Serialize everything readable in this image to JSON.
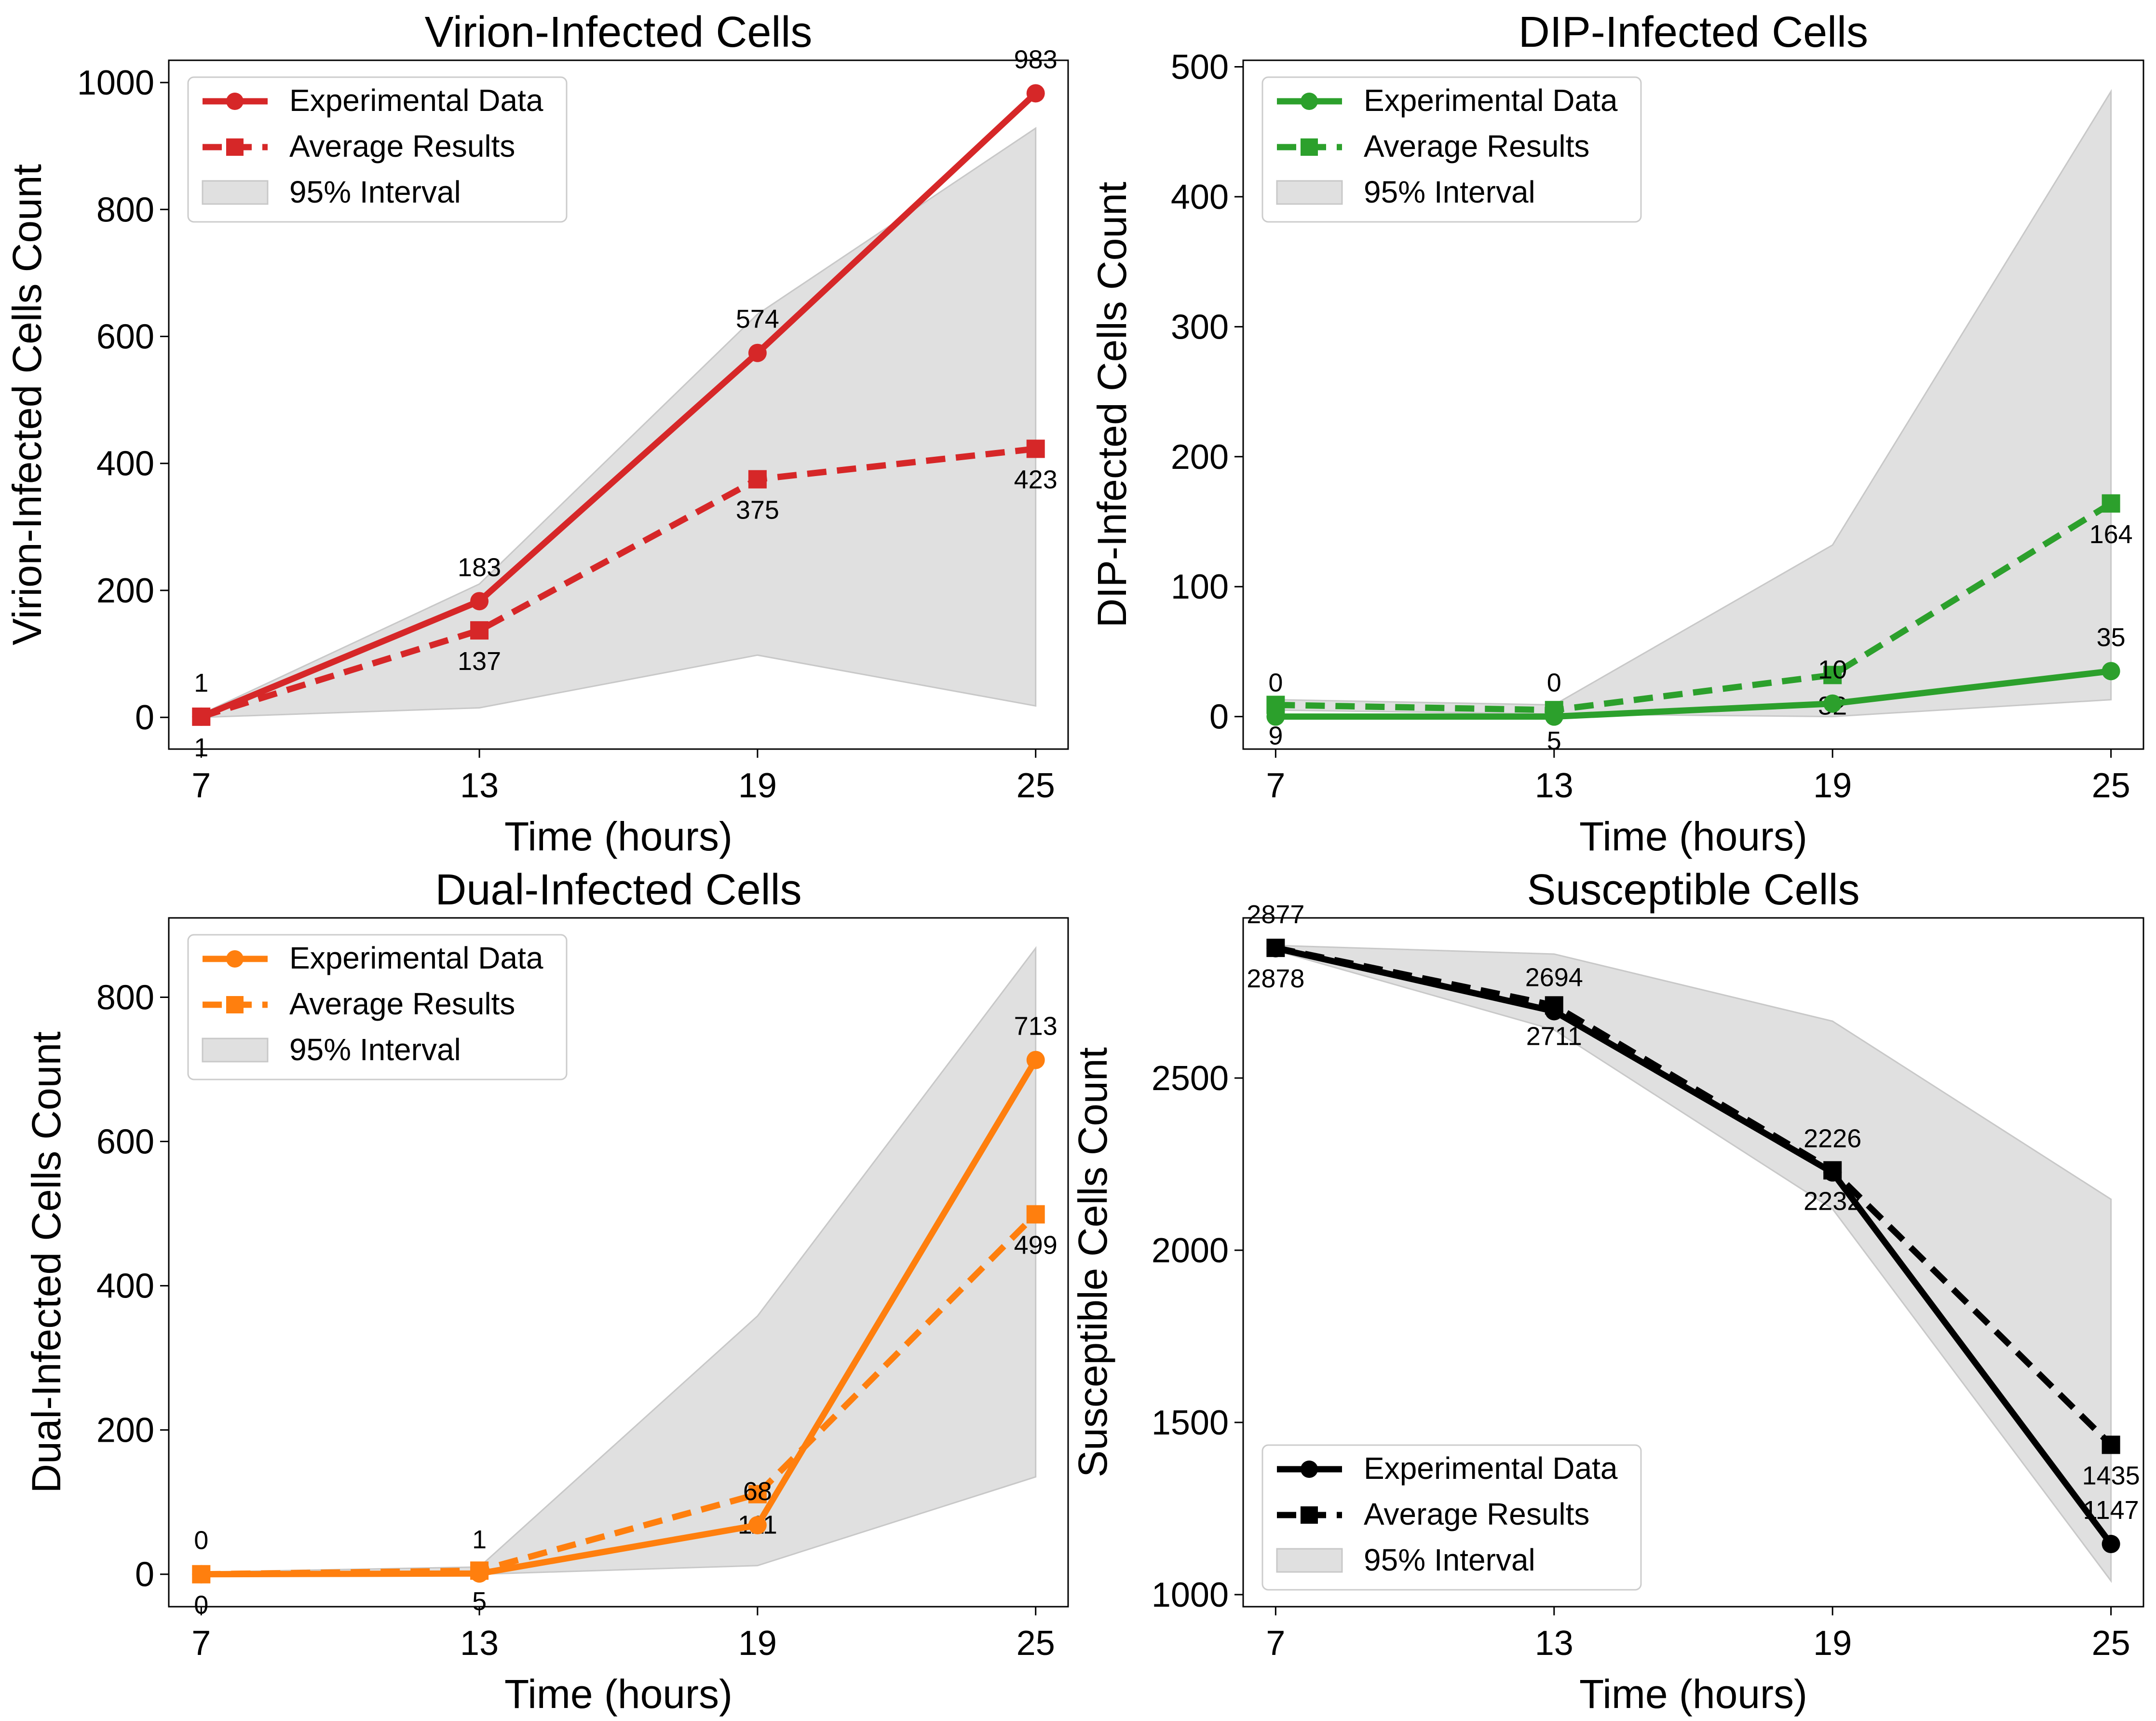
{
  "chart_data": [
    {
      "type": "line",
      "title": "Virion-Infected Cells",
      "xlabel": "Time (hours)",
      "ylabel": "Virion-Infected Cells Count",
      "x": [
        7,
        13,
        19,
        25
      ],
      "xlim": [
        6.3,
        25.7
      ],
      "ylim": [
        -50,
        1035
      ],
      "yticks": [
        0,
        200,
        400,
        600,
        800,
        1000
      ],
      "color": "#d62728",
      "legend_position": "upper-left",
      "series": [
        {
          "name": "Experimental Data",
          "style": "solid",
          "marker": "circle",
          "values": [
            1,
            183,
            574,
            983
          ],
          "labels": [
            "1",
            "183",
            "574",
            "983"
          ],
          "label_side": "above"
        },
        {
          "name": "Average Results",
          "style": "dashed",
          "marker": "square",
          "values": [
            1,
            137,
            375,
            423
          ],
          "labels": [
            "1",
            "137",
            "375",
            "423"
          ],
          "label_side": "below"
        }
      ],
      "interval": {
        "name": "95% Interval",
        "lower": [
          0,
          15,
          98,
          18
        ],
        "upper": [
          5,
          210,
          635,
          928
        ]
      }
    },
    {
      "type": "line",
      "title": "DIP-Infected Cells",
      "xlabel": "Time (hours)",
      "ylabel": "DIP-Infected Cells Count",
      "x": [
        7,
        13,
        19,
        25
      ],
      "xlim": [
        6.3,
        25.7
      ],
      "ylim": [
        -25,
        505
      ],
      "yticks": [
        0,
        100,
        200,
        300,
        400,
        500
      ],
      "color": "#2ca02c",
      "legend_position": "upper-left",
      "series": [
        {
          "name": "Experimental Data",
          "style": "solid",
          "marker": "circle",
          "values": [
            0,
            0,
            10,
            35
          ],
          "labels": [
            "0",
            "0",
            "10",
            "35"
          ],
          "label_side": "above"
        },
        {
          "name": "Average Results",
          "style": "dashed",
          "marker": "square",
          "values": [
            9,
            5,
            32,
            164
          ],
          "labels": [
            "9",
            "5",
            "32",
            "164"
          ],
          "label_side": "below"
        }
      ],
      "interval": {
        "name": "95% Interval",
        "lower": [
          5,
          2,
          0,
          13
        ],
        "upper": [
          13,
          9,
          132,
          481
        ]
      }
    },
    {
      "type": "line",
      "title": "Dual-Infected Cells",
      "xlabel": "Time (hours)",
      "ylabel": "Dual-Infected Cells Count",
      "x": [
        7,
        13,
        19,
        25
      ],
      "xlim": [
        6.3,
        25.7
      ],
      "ylim": [
        -45,
        910
      ],
      "yticks": [
        0,
        200,
        400,
        600,
        800
      ],
      "color": "#ff7f0e",
      "legend_position": "upper-left",
      "series": [
        {
          "name": "Experimental Data",
          "style": "solid",
          "marker": "circle",
          "values": [
            0,
            1,
            68,
            713
          ],
          "labels": [
            "0",
            "1",
            "68",
            "713"
          ],
          "label_side": "above"
        },
        {
          "name": "Average Results",
          "style": "dashed",
          "marker": "square",
          "values": [
            0,
            5,
            111,
            499
          ],
          "labels": [
            "0",
            "5",
            "111",
            "499"
          ],
          "label_side": "below"
        }
      ],
      "interval": {
        "name": "95% Interval",
        "lower": [
          0,
          0,
          12,
          135
        ],
        "upper": [
          3,
          10,
          358,
          868
        ]
      }
    },
    {
      "type": "line",
      "title": "Susceptible Cells",
      "xlabel": "Time (hours)",
      "ylabel": "Susceptible Cells Count",
      "x": [
        7,
        13,
        19,
        25
      ],
      "xlim": [
        6.3,
        25.7
      ],
      "ylim": [
        965,
        2965
      ],
      "yticks": [
        1000,
        1500,
        2000,
        2500
      ],
      "color": "#000000",
      "legend_position": "lower-left",
      "series": [
        {
          "name": "Experimental Data",
          "style": "solid",
          "marker": "circle",
          "values": [
            2877,
            2694,
            2226,
            1147
          ],
          "labels": [
            "2877",
            "2694",
            "2226",
            "1147"
          ],
          "label_side": "above"
        },
        {
          "name": "Average Results",
          "style": "dashed",
          "marker": "square",
          "values": [
            2878,
            2711,
            2232,
            1435
          ],
          "labels": [
            "2878",
            "2711",
            "2232",
            "1435"
          ],
          "label_side": "below"
        }
      ],
      "interval": {
        "name": "95% Interval",
        "lower": [
          2870,
          2640,
          2120,
          1040
        ],
        "upper": [
          2885,
          2860,
          2665,
          2148
        ]
      }
    }
  ]
}
